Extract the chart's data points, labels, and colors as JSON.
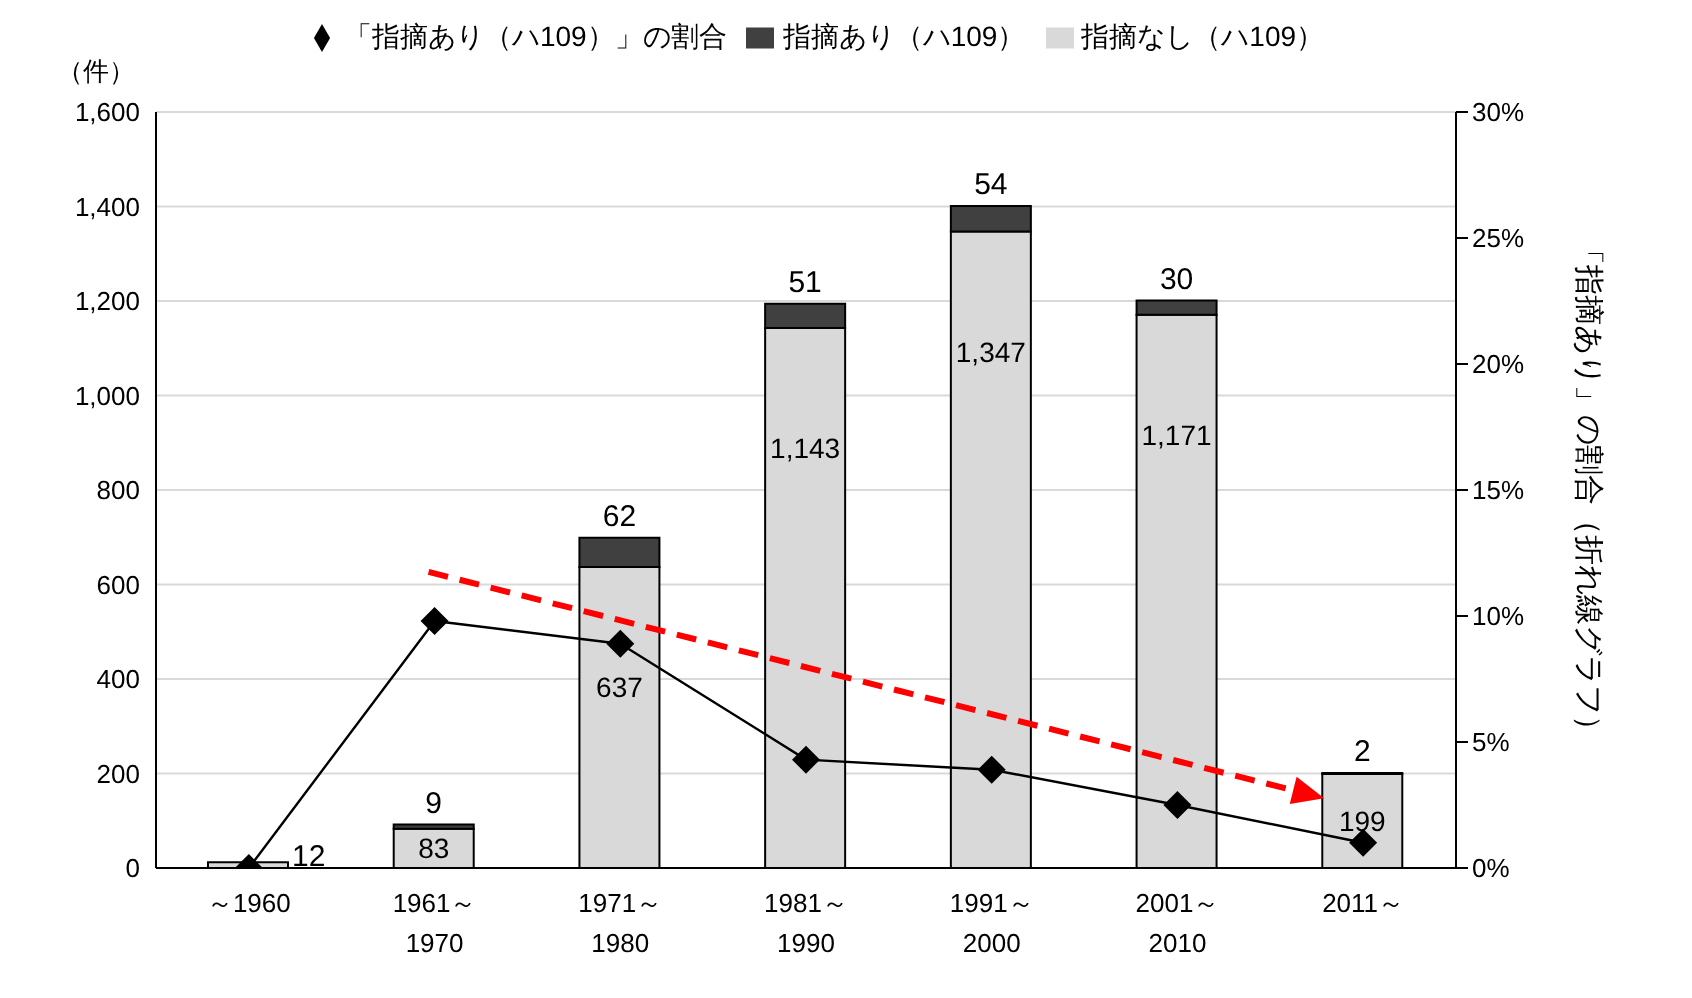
{
  "chart_data": {
    "type": "bar",
    "stacked": true,
    "ylabel": "（件）",
    "y2label": "「指摘あり」の割合（折れ線グラフ）",
    "categories": [
      "～1960",
      "1961～\n1970",
      "1971～\n1980",
      "1981～\n1990",
      "1991～\n2000",
      "2001～\n2010",
      "2011～"
    ],
    "series": [
      {
        "name": "指摘なし（ハ109）",
        "color": "#d9d9d9",
        "values": [
          12,
          83,
          637,
          1143,
          1347,
          1171,
          199
        ],
        "value_labels": [
          "12",
          "83",
          "637",
          "1,143",
          "1,347",
          "1,171",
          "199"
        ]
      },
      {
        "name": "指摘あり（ハ109）",
        "color": "#404040",
        "values": [
          0,
          9,
          62,
          51,
          54,
          30,
          2
        ],
        "value_labels": [
          null,
          "9",
          "62",
          "51",
          "54",
          "30",
          "2"
        ]
      },
      {
        "name": "「指摘あり（ハ109）」の割合",
        "type": "line",
        "axis": "y2",
        "color": "#000000",
        "marker": "diamond",
        "values": [
          0,
          9.8,
          8.9,
          4.3,
          3.9,
          2.5,
          1.0
        ]
      }
    ],
    "ylim": [
      0,
      1600
    ],
    "yticks": [
      {
        "value": 0,
        "label": "0"
      },
      {
        "value": 200,
        "label": "200"
      },
      {
        "value": 400,
        "label": "400"
      },
      {
        "value": 600,
        "label": "600"
      },
      {
        "value": 800,
        "label": "800"
      },
      {
        "value": 1000,
        "label": "1,000"
      },
      {
        "value": 1200,
        "label": "1,200"
      },
      {
        "value": 1400,
        "label": "1,400"
      },
      {
        "value": 1600,
        "label": "1,600"
      }
    ],
    "y2lim": [
      0,
      30
    ],
    "y2ticks": [
      {
        "value": 0,
        "label": "0%"
      },
      {
        "value": 5,
        "label": "5%"
      },
      {
        "value": 10,
        "label": "10%"
      },
      {
        "value": 15,
        "label": "15%"
      },
      {
        "value": 20,
        "label": "20%"
      },
      {
        "value": 25,
        "label": "25%"
      },
      {
        "value": 30,
        "label": "30%"
      }
    ],
    "grid": "y",
    "legend": "top"
  }
}
